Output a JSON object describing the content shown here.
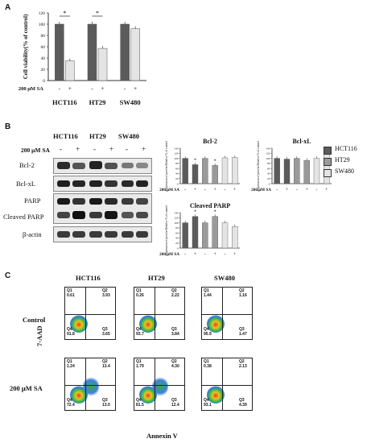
{
  "panels": {
    "a": "A",
    "b": "B",
    "c": "C"
  },
  "treatment_label": "200 μM SA",
  "signs": [
    "-",
    "+",
    "-",
    "+",
    "-",
    "+"
  ],
  "cell_lines": [
    "HCT116",
    "HT29",
    "SW480"
  ],
  "star": "*",
  "colors": {
    "dark_bar": "#5b5b5b",
    "mid_bar": "#9a9a9a",
    "light_bar": "#e4e4e4"
  },
  "chart_data": [
    {
      "type": "bar",
      "panel": "A",
      "ylabel": "Cell viability(% of control)",
      "categories": [
        "HCT116",
        "HT29",
        "SW480"
      ],
      "series": [
        {
          "name": "-",
          "values": [
            100,
            100,
            100
          ]
        },
        {
          "name": "+",
          "values": [
            35,
            57,
            92
          ]
        }
      ],
      "yticks": [
        0,
        20,
        40,
        60,
        80,
        100,
        120
      ],
      "ylim": [
        0,
        120
      ],
      "significance": [
        "HCT116",
        "HT29"
      ]
    },
    {
      "type": "bar",
      "panel": "B",
      "title": "Bcl-2",
      "ylabel": "Expression of protein Relative % of control",
      "values": [
        100,
        75,
        100,
        72,
        102,
        103
      ],
      "yticks": [
        0,
        20,
        40,
        60,
        80,
        100,
        120,
        140
      ],
      "ylim": [
        0,
        140
      ],
      "significance_index": [
        1,
        3
      ]
    },
    {
      "type": "bar",
      "panel": "B",
      "title": "Bcl-xL",
      "ylabel": "Expression of protein Relative % of control",
      "values": [
        100,
        97,
        100,
        92,
        100,
        118
      ],
      "yticks": [
        0,
        20,
        40,
        60,
        80,
        100,
        120,
        140
      ],
      "ylim": [
        0,
        140
      ]
    },
    {
      "type": "bar",
      "panel": "B",
      "title": "Cleaved PARP",
      "ylabel": "Expression of protein Relative % of control",
      "values": [
        100,
        125,
        100,
        125,
        100,
        85
      ],
      "yticks": [
        0,
        20,
        40,
        60,
        80,
        100,
        120,
        140
      ],
      "ylim": [
        0,
        140
      ],
      "significance_index": [
        1,
        3
      ]
    }
  ],
  "legend": [
    "HCT116",
    "HT29",
    "SW480"
  ],
  "blot": {
    "headers": [
      "HCT116",
      "HT29",
      "SW480"
    ],
    "rows": [
      "Bcl-2",
      "Bcl-xL",
      "PARP",
      "Cleaved PARP",
      "β-actin"
    ]
  },
  "flow": {
    "row_labels": [
      "Control",
      "200 μM SA"
    ],
    "col_labels": [
      "HCT116",
      "HT29",
      "SW480"
    ],
    "y_axis": "7-AAD",
    "x_axis": "Annexin V",
    "plots": [
      [
        {
          "q1": "0.61",
          "q2": "3.93",
          "q3": "3.65",
          "q4": "91.8"
        },
        {
          "q1": "0.26",
          "q2": "2.22",
          "q3": "3.84",
          "q4": "93.7"
        },
        {
          "q1": "1.44",
          "q2": "1.16",
          "q3": "1.47",
          "q4": "95.9"
        }
      ],
      [
        {
          "q1": "1.24",
          "q2": "13.4",
          "q3": "13.0",
          "q4": "72.4"
        },
        {
          "q1": "1.79",
          "q2": "4.30",
          "q3": "12.4",
          "q4": "81.5"
        },
        {
          "q1": "0.38",
          "q2": "2.13",
          "q3": "4.39",
          "q4": "93.1"
        }
      ]
    ],
    "quadrant_names": [
      "Q1",
      "Q2",
      "Q3",
      "Q4"
    ]
  }
}
